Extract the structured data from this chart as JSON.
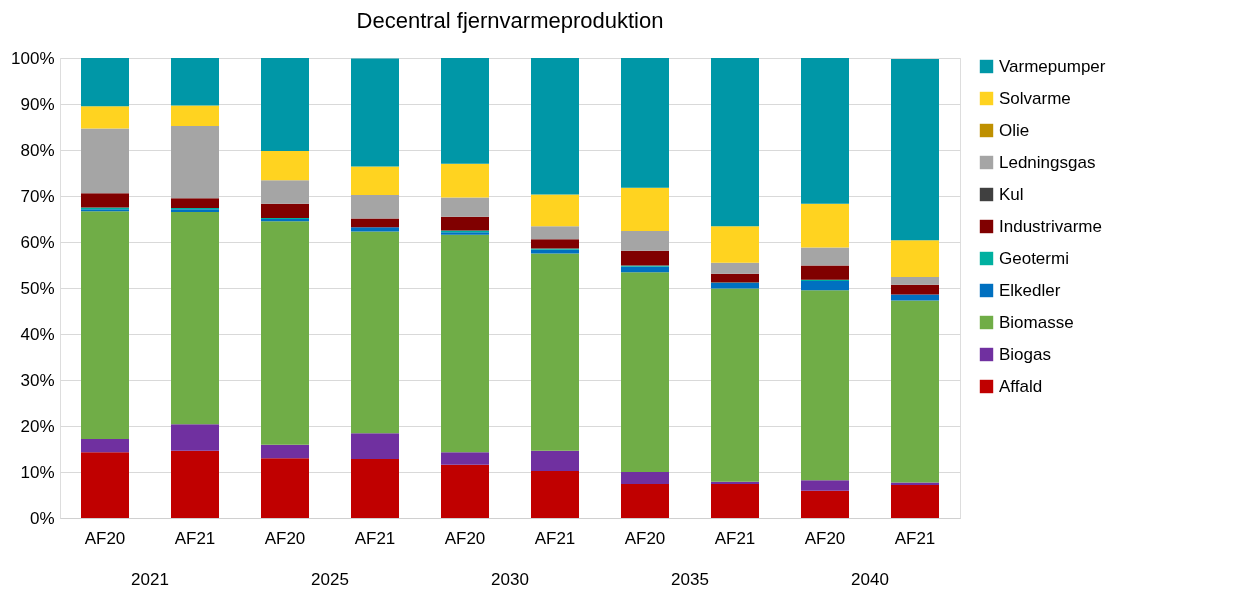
{
  "chart_data": {
    "type": "bar",
    "title": "Decentral fjernvarmeproduktion",
    "categories": [
      "AF20",
      "AF21",
      "AF20",
      "AF21",
      "AF20",
      "AF21",
      "AF20",
      "AF21",
      "AF20",
      "AF21"
    ],
    "annotations": [
      "2021",
      "2025",
      "2030",
      "2035",
      "2040"
    ],
    "stacked": true,
    "ylim": [
      0,
      100
    ],
    "yticks": [
      {
        "value": 0,
        "label": "0%"
      },
      {
        "value": 10,
        "label": "10%"
      },
      {
        "value": 20,
        "label": "20%"
      },
      {
        "value": 30,
        "label": "30%"
      },
      {
        "value": 40,
        "label": "40%"
      },
      {
        "value": 50,
        "label": "50%"
      },
      {
        "value": 60,
        "label": "60%"
      },
      {
        "value": 70,
        "label": "70%"
      },
      {
        "value": 80,
        "label": "80%"
      },
      {
        "value": 90,
        "label": "90%"
      },
      {
        "value": 100,
        "label": "100%"
      }
    ],
    "grid": "y",
    "legend": "right",
    "series": [
      {
        "name": "Affald",
        "color": "#c00000",
        "values": [
          14.3,
          14.6,
          13.0,
          12.8,
          11.6,
          10.2,
          7.4,
          7.4,
          5.9,
          7.2
        ]
      },
      {
        "name": "Biogas",
        "color": "#7030a0",
        "values": [
          2.9,
          5.8,
          2.9,
          5.6,
          2.7,
          4.4,
          2.6,
          0.5,
          2.3,
          0.5
        ]
      },
      {
        "name": "Biomasse",
        "color": "#70ad47",
        "values": [
          49.5,
          46.1,
          48.6,
          43.9,
          47.3,
          42.9,
          43.4,
          42.0,
          41.3,
          39.6
        ]
      },
      {
        "name": "Elkedler",
        "color": "#0070c0",
        "values": [
          0.4,
          0.6,
          0.5,
          0.9,
          0.5,
          0.8,
          1.2,
          1.2,
          2.0,
          1.3
        ]
      },
      {
        "name": "Geotermi",
        "color": "#00b0a0",
        "values": [
          0.4,
          0.3,
          0.2,
          null,
          0.4,
          0.3,
          0.3,
          0.1,
          0.3,
          null
        ]
      },
      {
        "name": "Industrivarme",
        "color": "#800000",
        "values": [
          3.1,
          2.1,
          3.1,
          1.9,
          3.0,
          2.0,
          3.2,
          1.9,
          3.1,
          2.1
        ]
      },
      {
        "name": "Kul",
        "color": "#404040",
        "values": [
          0,
          0,
          0,
          0,
          0,
          0,
          0,
          0,
          0,
          0
        ]
      },
      {
        "name": "Ledningsgas",
        "color": "#a5a5a5",
        "values": [
          14.1,
          15.7,
          5.1,
          5.1,
          4.2,
          2.8,
          4.3,
          2.4,
          3.9,
          1.7
        ]
      },
      {
        "name": "Olie",
        "color": "#bf9000",
        "values": [
          0,
          0,
          0,
          0,
          0,
          0,
          0,
          0,
          0,
          0
        ]
      },
      {
        "name": "Solvarme",
        "color": "#ffd320",
        "values": [
          4.8,
          4.5,
          6.4,
          6.2,
          7.3,
          6.9,
          9.4,
          7.9,
          9.5,
          8.0
        ]
      },
      {
        "name": "Varmepumper",
        "color": "#0097a7",
        "values": [
          10.5,
          10.3,
          20.2,
          23.5,
          23.0,
          29.7,
          28.2,
          36.6,
          31.7,
          39.4
        ]
      }
    ]
  }
}
